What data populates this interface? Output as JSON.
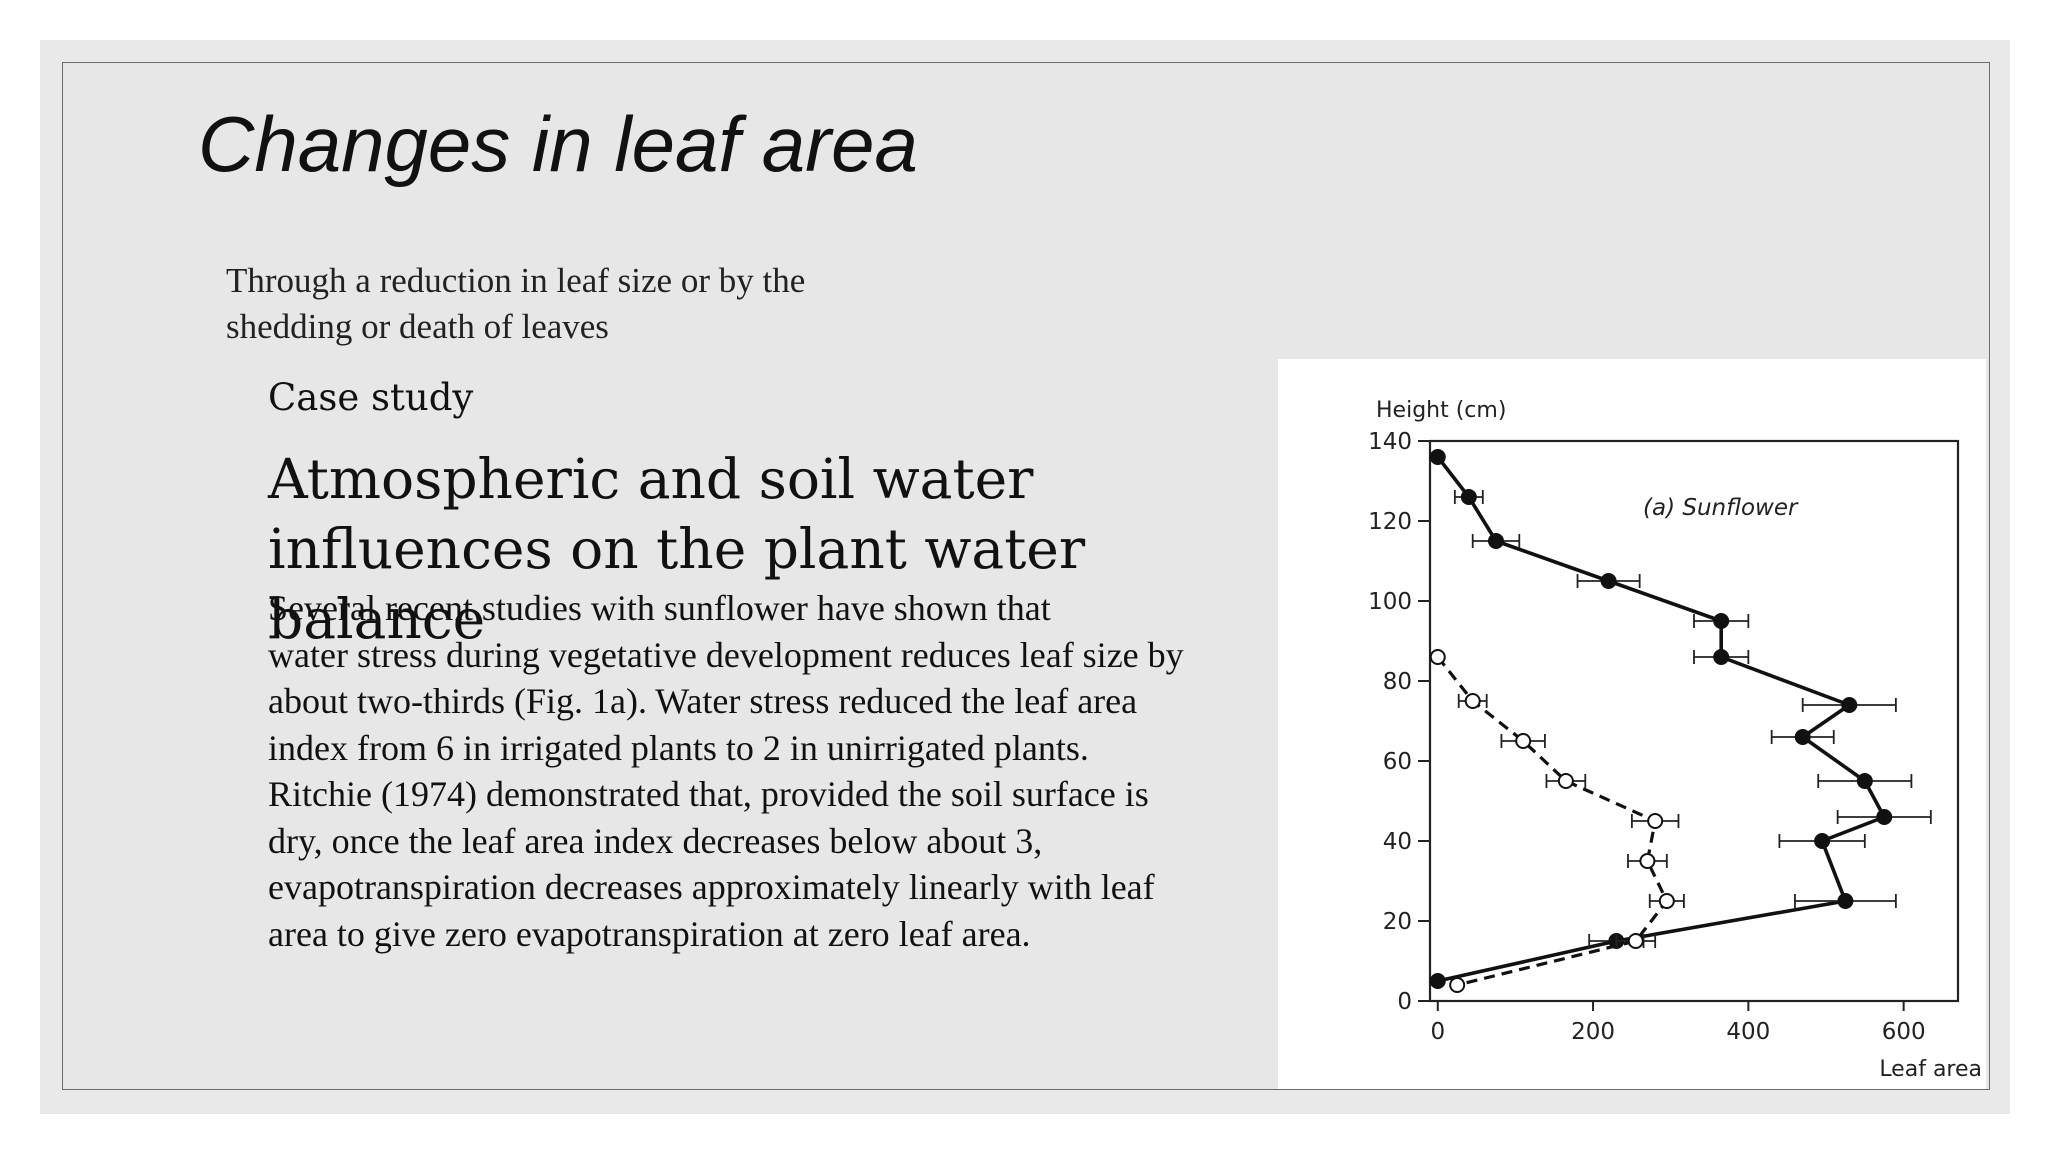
{
  "slide": {
    "title": "Changes in leaf area",
    "bullet": "Through a reduction in leaf size or by the shedding or death of leaves",
    "case_label": "Case study",
    "heading_lines": [
      "Atmospheric and soil water",
      "influences on the plant water balance"
    ],
    "body_lines": [
      "Several recent studies with sunflower have shown that",
      "water stress during vegetative development reduces leaf size by",
      "about two-thirds (Fig. 1a). Water stress reduced the leaf area",
      "index from 6 in irrigated plants to 2 in unirrigated plants.",
      "Ritchie (1974) demonstrated that, provided the soil surface is",
      "dry, once the leaf area index decreases below about 3,",
      "evapotranspiration decreases approximately linearly with leaf",
      "area to give zero evapotranspiration at zero leaf area."
    ]
  },
  "chart_data": {
    "type": "line",
    "annotation": "(a) Sunflower",
    "xlabel": "Leaf area",
    "ylabel": "Height (cm)",
    "xlim": [
      -10,
      670
    ],
    "ylim": [
      0,
      140
    ],
    "xticks": [
      0,
      200,
      400,
      600
    ],
    "yticks": [
      0,
      20,
      40,
      60,
      80,
      100,
      120,
      140
    ],
    "grid": false,
    "series": [
      {
        "marker": "filled",
        "line": "solid",
        "points": [
          {
            "x": 0,
            "y": 136,
            "err": 0
          },
          {
            "x": 40,
            "y": 126,
            "err": 18
          },
          {
            "x": 75,
            "y": 115,
            "err": 30
          },
          {
            "x": 220,
            "y": 105,
            "err": 40
          },
          {
            "x": 365,
            "y": 95,
            "err": 35
          },
          {
            "x": 365,
            "y": 86,
            "err": 35
          },
          {
            "x": 530,
            "y": 74,
            "err": 60
          },
          {
            "x": 470,
            "y": 66,
            "err": 40
          },
          {
            "x": 550,
            "y": 55,
            "err": 60
          },
          {
            "x": 575,
            "y": 46,
            "err": 60
          },
          {
            "x": 495,
            "y": 40,
            "err": 55
          },
          {
            "x": 525,
            "y": 25,
            "err": 65
          },
          {
            "x": 230,
            "y": 15,
            "err": 35
          },
          {
            "x": 0,
            "y": 5,
            "err": 0
          }
        ]
      },
      {
        "marker": "open",
        "line": "dashed",
        "points": [
          {
            "x": 0,
            "y": 86,
            "err": 0
          },
          {
            "x": 45,
            "y": 75,
            "err": 18
          },
          {
            "x": 110,
            "y": 65,
            "err": 28
          },
          {
            "x": 165,
            "y": 55,
            "err": 25
          },
          {
            "x": 280,
            "y": 45,
            "err": 30
          },
          {
            "x": 270,
            "y": 35,
            "err": 25
          },
          {
            "x": 295,
            "y": 25,
            "err": 22
          },
          {
            "x": 255,
            "y": 15,
            "err": 25
          },
          {
            "x": 25,
            "y": 4,
            "err": 0
          }
        ]
      }
    ]
  }
}
